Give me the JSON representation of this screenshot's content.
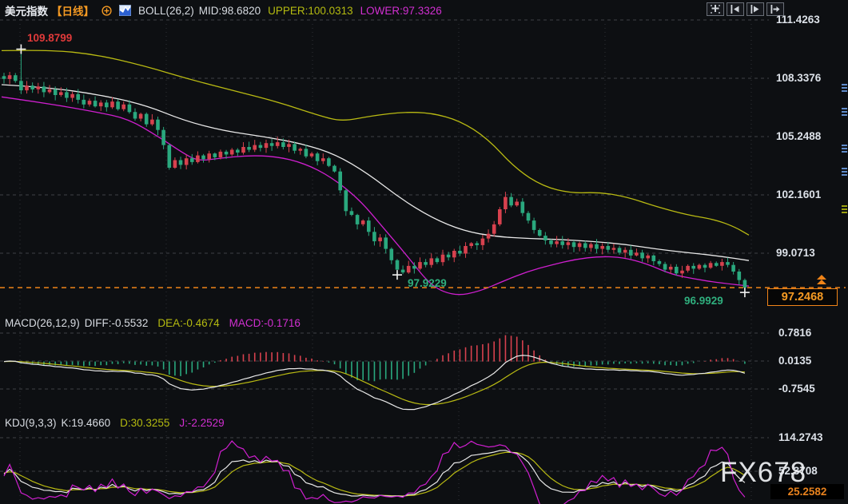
{
  "titlebar": {
    "symbol": "美元指数",
    "period": "【日线】",
    "boll_label": "BOLL(26,2)",
    "mid": "MID:98.6820",
    "upper": "UPPER:100.0313",
    "lower": "LOWER:97.3326"
  },
  "toolbar_icons": [
    "pan-icon",
    "scroll-left-icon",
    "scroll-right-icon",
    "jump-latest-icon"
  ],
  "main_axis": [
    "111.4263",
    "108.3376",
    "105.2488",
    "102.1601",
    "99.0713"
  ],
  "price_box": "97.2468",
  "annotations": {
    "start_high": "109.8799",
    "swing_low": "97.9229",
    "last_low": "96.9929"
  },
  "macd_pane": {
    "label": "MACD(26,12,9)",
    "diff": "DIFF:-0.5532",
    "dea": "DEA:-0.4674",
    "macd": "MACD:-0.1716",
    "axis": [
      "0.7816",
      "0.0135",
      "-0.7545"
    ]
  },
  "kdj_pane": {
    "label": "KDJ(9,3,3)",
    "k": "K:19.4660",
    "d": "D:30.3255",
    "j": "J:-2.2529",
    "axis_top": "114.2743",
    "axis_mid": "52.3708",
    "axis_bottom": "25.2582"
  },
  "watermark": "FX678",
  "colors": {
    "background": "#0d0f12",
    "up": "#d7414e",
    "down": "#2aa87e",
    "boll_mid": "#e8e8e8",
    "boll_upper": "#b9ba12",
    "boll_lower": "#cf1fcf",
    "price_line": "#f08418",
    "accent_orange": "#f59a23",
    "axis_text": "#dce1e8",
    "annotation_red": "#e03a3a",
    "annotation_green": "#2fae7d",
    "diff_line": "#e8e8e8",
    "dea_line": "#b9ba12",
    "macd_line": "#cf1fcf",
    "k_line": "#e8e8e8",
    "d_line": "#b9ba12",
    "j_line": "#cf1fcf",
    "grid": "#7a7f88"
  },
  "chart_data": {
    "type": "candlestick",
    "symbol": "美元指数",
    "period": "日线",
    "axis": {
      "top_value": 111.4263,
      "step_value": 3.08875,
      "labels": [
        111.4263,
        108.3376,
        105.2488,
        102.1601,
        99.0713
      ]
    },
    "last_price": 97.2468,
    "closes": [
      108.3,
      108.5,
      108.2,
      107.7,
      107.95,
      107.75,
      107.9,
      107.6,
      107.75,
      107.45,
      107.6,
      107.3,
      107.5,
      107.2,
      106.95,
      107.15,
      106.85,
      107.05,
      106.8,
      107.1,
      106.7,
      106.95,
      106.55,
      106.2,
      106.45,
      105.9,
      106.15,
      105.6,
      104.8,
      103.6,
      104.0,
      103.75,
      104.1,
      103.9,
      104.25,
      104.05,
      104.35,
      104.15,
      104.45,
      104.3,
      104.55,
      104.4,
      104.7,
      104.55,
      104.8,
      104.65,
      104.9,
      104.75,
      104.95,
      104.7,
      104.85,
      104.5,
      104.6,
      104.2,
      104.35,
      103.95,
      104.1,
      103.7,
      103.4,
      102.4,
      101.3,
      101.1,
      100.6,
      100.8,
      100.2,
      99.7,
      99.9,
      99.3,
      98.7,
      98.2,
      98.05,
      98.4,
      98.25,
      98.6,
      98.45,
      98.8,
      98.6,
      99.0,
      98.85,
      99.2,
      99.05,
      99.45,
      99.6,
      99.5,
      99.85,
      100.1,
      100.6,
      101.4,
      102.05,
      101.6,
      101.8,
      101.2,
      100.8,
      100.3,
      100.0,
      99.75,
      99.55,
      99.7,
      99.5,
      99.65,
      99.4,
      99.6,
      99.35,
      99.55,
      99.3,
      99.45,
      99.25,
      99.35,
      99.1,
      99.25,
      98.95,
      99.1,
      98.8,
      98.95,
      98.65,
      98.5,
      98.2,
      98.35,
      98.0,
      98.15,
      98.4,
      98.25,
      98.45,
      98.3,
      98.55,
      98.4,
      98.6,
      98.45,
      98.1,
      97.65,
      97.2468
    ],
    "special": {
      "start_high": {
        "i": 3,
        "price": 109.8799
      },
      "swing_low": {
        "i": 69,
        "price": 97.9229
      },
      "last_low": {
        "i": 130,
        "price": 96.9929
      }
    },
    "boll": {
      "mid_last": 98.682,
      "upper_last": 100.0313,
      "lower_last": 97.3326,
      "mid_points": [
        [
          2,
          108.0
        ],
        [
          60,
          107.85
        ],
        [
          120,
          107.5
        ],
        [
          180,
          106.95
        ],
        [
          230,
          106.1
        ],
        [
          280,
          105.55
        ],
        [
          330,
          105.25
        ],
        [
          380,
          104.85
        ],
        [
          420,
          104.3
        ],
        [
          460,
          103.3
        ],
        [
          500,
          102.0
        ],
        [
          540,
          100.95
        ],
        [
          580,
          100.25
        ],
        [
          620,
          99.95
        ],
        [
          660,
          99.85
        ],
        [
          700,
          99.8
        ],
        [
          740,
          99.7
        ],
        [
          780,
          99.55
        ],
        [
          820,
          99.3
        ],
        [
          860,
          99.1
        ],
        [
          900,
          98.92
        ],
        [
          937,
          98.682
        ]
      ],
      "upper_points": [
        [
          2,
          109.8
        ],
        [
          60,
          109.85
        ],
        [
          120,
          109.6
        ],
        [
          180,
          109.0
        ],
        [
          240,
          108.25
        ],
        [
          300,
          107.6
        ],
        [
          350,
          107.05
        ],
        [
          400,
          106.35
        ],
        [
          428,
          106.05
        ],
        [
          465,
          106.35
        ],
        [
          505,
          106.55
        ],
        [
          540,
          106.5
        ],
        [
          575,
          106.1
        ],
        [
          610,
          105.15
        ],
        [
          645,
          103.55
        ],
        [
          680,
          102.6
        ],
        [
          715,
          102.25
        ],
        [
          750,
          102.3
        ],
        [
          785,
          102.05
        ],
        [
          820,
          101.55
        ],
        [
          860,
          101.1
        ],
        [
          895,
          100.85
        ],
        [
          920,
          100.45
        ],
        [
          937,
          100.0313
        ]
      ],
      "lower_points": [
        [
          2,
          107.35
        ],
        [
          60,
          107.0
        ],
        [
          120,
          106.55
        ],
        [
          160,
          106.2
        ],
        [
          200,
          105.2
        ],
        [
          228,
          104.4
        ],
        [
          248,
          103.95
        ],
        [
          275,
          104.1
        ],
        [
          310,
          104.25
        ],
        [
          345,
          104.2
        ],
        [
          380,
          103.85
        ],
        [
          415,
          103.1
        ],
        [
          450,
          101.9
        ],
        [
          480,
          100.4
        ],
        [
          510,
          98.9
        ],
        [
          540,
          97.3
        ],
        [
          570,
          96.8
        ],
        [
          600,
          97.05
        ],
        [
          630,
          97.6
        ],
        [
          660,
          98.1
        ],
        [
          690,
          98.45
        ],
        [
          720,
          98.75
        ],
        [
          750,
          98.9
        ],
        [
          780,
          98.85
        ],
        [
          810,
          98.5
        ],
        [
          840,
          97.95
        ],
        [
          870,
          97.7
        ],
        [
          900,
          97.5
        ],
        [
          937,
          97.3326
        ]
      ]
    },
    "macd": {
      "params": [
        26,
        12,
        9
      ],
      "diff": -0.5532,
      "dea": -0.4674,
      "macd": -0.1716,
      "axis": [
        0.7816,
        0.0135,
        -0.7545
      ]
    },
    "kdj": {
      "params": [
        9,
        3,
        3
      ],
      "k": 19.466,
      "d": 30.3255,
      "j": -2.2529,
      "axis": [
        114.2743,
        52.3708,
        25.2582
      ]
    }
  }
}
